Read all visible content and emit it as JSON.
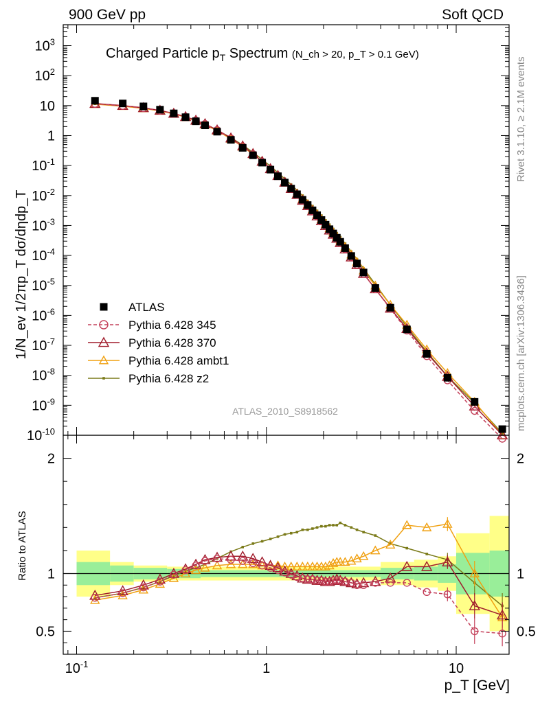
{
  "header": {
    "left": "900 GeV pp",
    "right": "Soft QCD"
  },
  "side_labels": {
    "rivet": "Rivet 3.1.10, ≥ 2.1M events",
    "mcplots": "mcplots.cern.ch [arXiv:1306.3436]"
  },
  "analysis_id": "ATLAS_2010_S8918562",
  "chart_data": [
    {
      "type": "line",
      "title": "Charged Particle p_T Spectrum",
      "title_sub": "(N_ch > 20, p_T > 0.1 GeV)",
      "ylabel": "1/N_ev 1/2πp_T dσ/dηdp_T",
      "xlabel": "p_T [GeV]",
      "xscale": "log",
      "yscale": "log",
      "xlim": [
        0.085,
        19
      ],
      "ylim": [
        1e-10,
        5000
      ],
      "grid": false,
      "legend_position": "lower-left",
      "y_tick_labels": [
        "10^-10",
        "10^-9",
        "10^-8",
        "10^-7",
        "10^-6",
        "10^-5",
        "10^-4",
        "10^-3",
        "10^-2",
        "10^-1",
        "1",
        "10",
        "10^2",
        "10^3"
      ],
      "x": [
        0.125,
        0.175,
        0.225,
        0.275,
        0.325,
        0.375,
        0.425,
        0.475,
        0.55,
        0.65,
        0.75,
        0.85,
        0.95,
        1.05,
        1.15,
        1.25,
        1.35,
        1.45,
        1.55,
        1.65,
        1.75,
        1.85,
        1.95,
        2.05,
        2.15,
        2.25,
        2.35,
        2.45,
        2.6,
        2.8,
        3.0,
        3.25,
        3.75,
        4.5,
        5.5,
        7.0,
        9.0,
        12.5,
        17.5
      ],
      "series": [
        {
          "name": "ATLAS",
          "color": "#000000",
          "marker": "square",
          "values": [
            14.5,
            11.8,
            9.4,
            7.3,
            5.5,
            4.1,
            3.0,
            2.2,
            1.35,
            0.72,
            0.39,
            0.22,
            0.125,
            0.073,
            0.044,
            0.027,
            0.017,
            0.011,
            0.0072,
            0.0048,
            0.0032,
            0.0022,
            0.00152,
            0.00106,
            0.00075,
            0.00054,
            0.00039,
            0.000285,
            0.000175,
            9.6e-05,
            5.4e-05,
            2.7e-05,
            8.2e-06,
            1.8e-06,
            3.4e-07,
            5.2e-08,
            8.3e-09,
            1.3e-09,
            1.6e-10
          ]
        },
        {
          "name": "Pythia 6.428 345",
          "color": "#c4405a",
          "marker": "circle",
          "dashed": true,
          "ratio": [
            0.79,
            0.83,
            0.88,
            0.93,
            0.99,
            1.03,
            1.07,
            1.11,
            1.13,
            1.12,
            1.11,
            1.09,
            1.07,
            1.05,
            1.03,
            1.01,
            0.99,
            0.97,
            0.96,
            0.95,
            0.95,
            0.94,
            0.94,
            0.93,
            0.93,
            0.94,
            0.94,
            0.94,
            0.93,
            0.92,
            0.9,
            0.9,
            0.92,
            0.92,
            0.92,
            0.84,
            0.82,
            0.5,
            0.48
          ]
        },
        {
          "name": "Pythia 6.428 370",
          "color": "#a01c2c",
          "marker": "triangle",
          "ratio": [
            0.81,
            0.85,
            0.9,
            0.95,
            1.0,
            1.04,
            1.08,
            1.12,
            1.14,
            1.15,
            1.15,
            1.13,
            1.1,
            1.07,
            1.05,
            1.02,
            1.0,
            0.98,
            0.96,
            0.95,
            0.95,
            0.94,
            0.94,
            0.93,
            0.93,
            0.94,
            0.95,
            0.94,
            0.93,
            0.92,
            0.91,
            0.92,
            0.93,
            0.96,
            1.06,
            1.06,
            1.1,
            0.72,
            0.64
          ]
        },
        {
          "name": "Pythia 6.428 ambt1",
          "color": "#f0a010",
          "marker": "triangle",
          "ratio": [
            0.77,
            0.81,
            0.86,
            0.91,
            0.96,
            1.0,
            1.03,
            1.05,
            1.07,
            1.08,
            1.08,
            1.08,
            1.07,
            1.07,
            1.07,
            1.06,
            1.06,
            1.06,
            1.06,
            1.06,
            1.06,
            1.06,
            1.06,
            1.06,
            1.07,
            1.09,
            1.1,
            1.1,
            1.1,
            1.11,
            1.13,
            1.15,
            1.2,
            1.25,
            1.42,
            1.4,
            1.43,
            1.0,
            0.62
          ]
        },
        {
          "name": "Pythia 6.428 z2",
          "color": "#7a7a18",
          "marker": "dot",
          "ratio": [
            0.79,
            0.83,
            0.88,
            0.93,
            0.98,
            1.02,
            1.05,
            1.08,
            1.13,
            1.19,
            1.23,
            1.26,
            1.28,
            1.3,
            1.32,
            1.34,
            1.35,
            1.36,
            1.38,
            1.38,
            1.39,
            1.4,
            1.41,
            1.41,
            1.42,
            1.42,
            1.42,
            1.44,
            1.42,
            1.4,
            1.38,
            1.36,
            1.33,
            1.26,
            1.22,
            1.17,
            1.12,
            0.92,
            0.72
          ]
        }
      ]
    },
    {
      "type": "line",
      "ylabel": "Ratio to ATLAS",
      "xscale": "log",
      "xlim": [
        0.085,
        19
      ],
      "ylim": [
        0.3,
        2.2
      ],
      "reference": 1.0,
      "y_tick_labels": [
        "0.5",
        "1",
        "2"
      ],
      "x_tick_labels": [
        "10^-1",
        "1",
        "10"
      ],
      "bands": [
        {
          "x0": 0.1,
          "x1": 0.15,
          "inner": 0.1,
          "outer": 0.2
        },
        {
          "x0": 0.15,
          "x1": 0.2,
          "inner": 0.07,
          "outer": 0.1
        },
        {
          "x0": 0.2,
          "x1": 0.3,
          "inner": 0.05,
          "outer": 0.07
        },
        {
          "x0": 0.3,
          "x1": 0.45,
          "inner": 0.04,
          "outer": 0.06
        },
        {
          "x0": 0.45,
          "x1": 4.0,
          "inner": 0.03,
          "outer": 0.06
        },
        {
          "x0": 4.0,
          "x1": 6.0,
          "inner": 0.05,
          "outer": 0.1
        },
        {
          "x0": 6.0,
          "x1": 8.0,
          "inner": 0.06,
          "outer": 0.12
        },
        {
          "x0": 8.0,
          "x1": 10.0,
          "inner": 0.08,
          "outer": 0.15
        },
        {
          "x0": 10.0,
          "x1": 15.0,
          "inner": 0.18,
          "outer": 0.35
        },
        {
          "x0": 15.0,
          "x1": 20.0,
          "inner": 0.2,
          "outer": 0.5
        }
      ]
    }
  ]
}
